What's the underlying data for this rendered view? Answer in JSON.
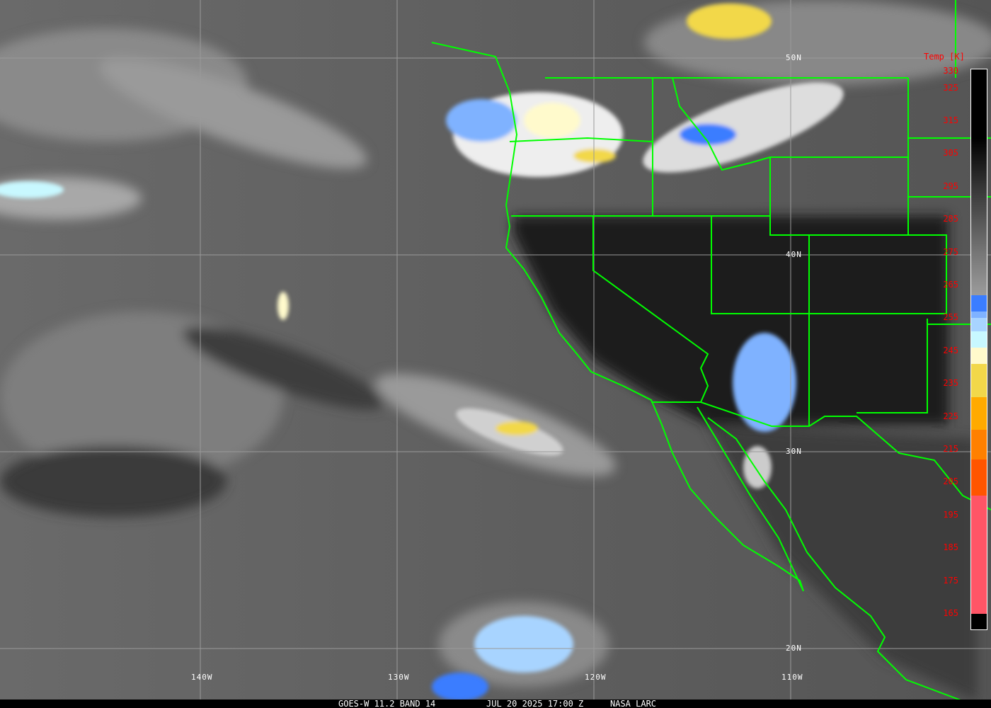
{
  "map": {
    "lat_labels": [
      "50N",
      "40N",
      "30N",
      "20N"
    ],
    "lon_labels": [
      "140W",
      "130W",
      "120W",
      "110W"
    ],
    "border_color": "#00ff00",
    "grid_color": "#9a9a9a"
  },
  "legend": {
    "title": "Temp [K]",
    "ticks": [
      "330",
      "325",
      "315",
      "305",
      "295",
      "285",
      "275",
      "265",
      "255",
      "245",
      "235",
      "225",
      "215",
      "205",
      "195",
      "185",
      "175",
      "165"
    ],
    "tick_color": "#ff0000",
    "color_scale": [
      {
        "from_K": 262,
        "to_K": 257,
        "color": "#3b7dff"
      },
      {
        "from_K": 257,
        "to_K": 255,
        "color": "#7fb2ff"
      },
      {
        "from_K": 255,
        "to_K": 251,
        "color": "#a8d4ff"
      },
      {
        "from_K": 251,
        "to_K": 246,
        "color": "#c8f8ff"
      },
      {
        "from_K": 246,
        "to_K": 241,
        "color": "#fffacc"
      },
      {
        "from_K": 241,
        "to_K": 231,
        "color": "#f2d84a"
      },
      {
        "from_K": 231,
        "to_K": 221,
        "color": "#ffaa00"
      },
      {
        "from_K": 221,
        "to_K": 212,
        "color": "#ff8000"
      },
      {
        "from_K": 212,
        "to_K": 201,
        "color": "#ff5500"
      },
      {
        "from_K": 201,
        "to_K": 165,
        "color": "#ff5566"
      }
    ]
  },
  "footer": {
    "satellite": "GOES-W 11.2 BAND 14",
    "datetime": "JUL 20 2025 17:00 Z",
    "credit": "NASA LARC"
  }
}
